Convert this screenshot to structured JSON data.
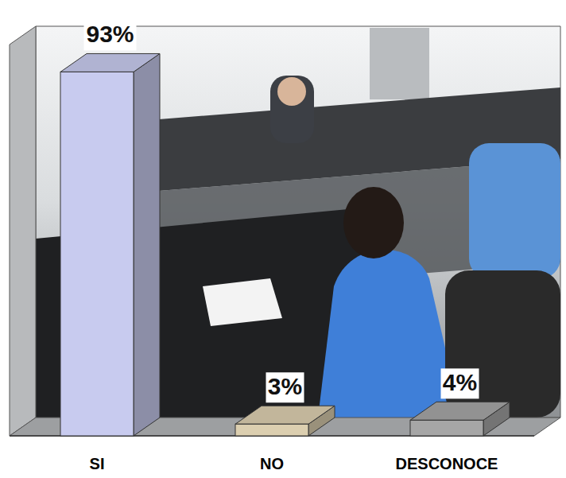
{
  "chart_data": {
    "type": "bar",
    "categories": [
      "SI",
      "NO",
      "DESCONOCE"
    ],
    "values": [
      93,
      3,
      4
    ],
    "value_labels": [
      "93%",
      "3%",
      "4%"
    ],
    "colors": [
      "#c8cbef",
      "#dccfb0",
      "#a6a6a6"
    ],
    "ylim": [
      0,
      100
    ],
    "data_labels": true,
    "tick_labels": "x"
  }
}
